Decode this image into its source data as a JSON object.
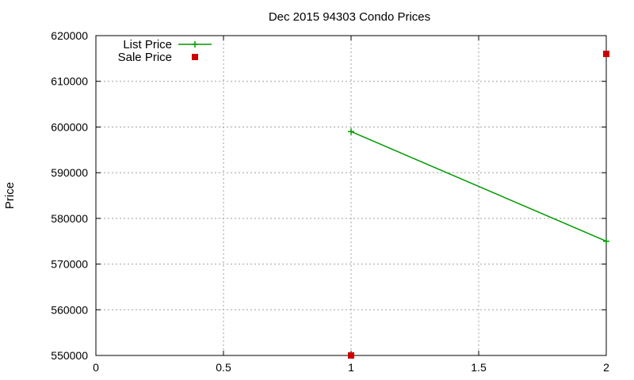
{
  "chart_data": {
    "type": "line",
    "title": "Dec 2015 94303 Condo Prices",
    "xlabel": "",
    "ylabel": "Price",
    "xlim": [
      0,
      2
    ],
    "ylim": [
      550000,
      620000
    ],
    "x_ticks": [
      "0",
      "0.5",
      "1",
      "1.5",
      "2"
    ],
    "y_ticks": [
      "550000",
      "560000",
      "570000",
      "580000",
      "590000",
      "600000",
      "610000",
      "620000"
    ],
    "grid": true,
    "legend": "top-left",
    "series": [
      {
        "name": "List Price",
        "style": "lines+points",
        "marker": "plus",
        "color": "#009900",
        "points": [
          {
            "x": 1,
            "y": 599000
          },
          {
            "x": 2,
            "y": 575000
          }
        ]
      },
      {
        "name": "Sale Price",
        "style": "points",
        "marker": "square",
        "color": "#cc0000",
        "points": [
          {
            "x": 1,
            "y": 550000
          },
          {
            "x": 2,
            "y": 616000
          }
        ]
      }
    ]
  }
}
